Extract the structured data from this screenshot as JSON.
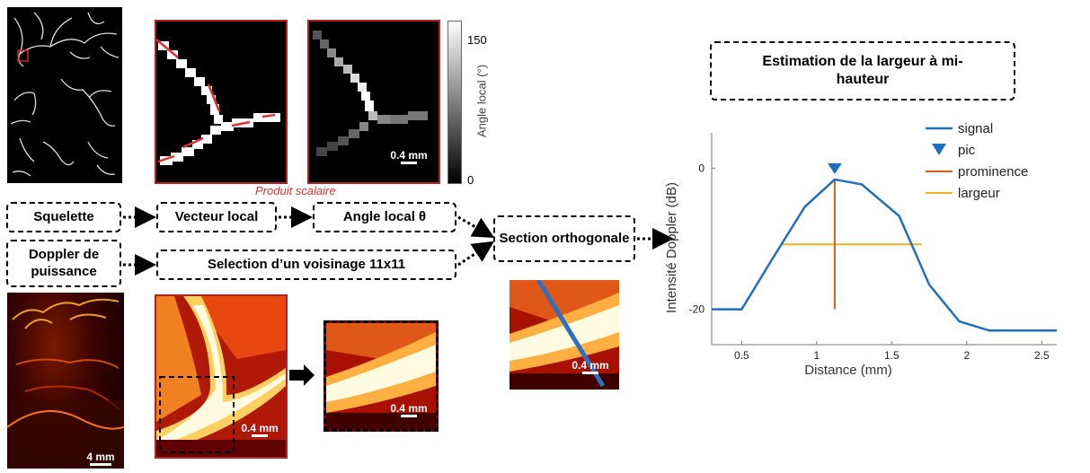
{
  "colorbar": {
    "max_label": "150",
    "min_label": "0",
    "label": "Angle local (°)"
  },
  "scalebars": {
    "angle": "0.4 mm",
    "doppler": "4 mm",
    "crop": "0.4 mm",
    "zoom": "0.4 mm",
    "section": "0.4 mm"
  },
  "boxes": {
    "squelette": "Squelette",
    "vecteur": "Vecteur local",
    "angle": "Angle local θ",
    "doppler": "Doppler de puissance",
    "voisinage": "Selection d’un voisinage 11x11",
    "section": "Section orthogonale",
    "estimation": "Estimation de la largeur à mi-hauteur"
  },
  "annotation": "Produit scalaire",
  "colors": {
    "signal": "#1f6fbf",
    "prominence": "#d2601a",
    "largeur": "#eeb220",
    "frame": "#b22222",
    "annotation": "#e03030"
  },
  "chart_data": {
    "type": "line",
    "xlabel": "Distance (mm)",
    "ylabel": "Intensité Doppler (dB)",
    "xlim": [
      0.3,
      2.6
    ],
    "ylim": [
      -25,
      5
    ],
    "xticks": [
      0.5,
      1,
      1.5,
      2,
      2.5
    ],
    "yticks": [
      0,
      -20
    ],
    "series": [
      {
        "name": "signal",
        "x": [
          0.3,
          0.5,
          0.7,
          0.92,
          1.12,
          1.3,
          1.55,
          1.75,
          1.95,
          2.15,
          2.4,
          2.6
        ],
        "y": [
          -20,
          -20,
          -13,
          -5.5,
          -1.6,
          -2.3,
          -6.8,
          -16.5,
          -21.7,
          -23,
          -23,
          -23
        ]
      }
    ],
    "peak": {
      "name": "pic",
      "x": 1.12,
      "y": -1.6
    },
    "prominence": {
      "name": "prominence",
      "x": 1.12,
      "y_from": -1.6,
      "y_to": -20
    },
    "width": {
      "name": "largeur",
      "y": -10.8,
      "x_from": 0.77,
      "x_to": 1.7
    },
    "legend": [
      "signal",
      "pic",
      "prominence",
      "largeur"
    ],
    "legend_position": "top-right"
  }
}
